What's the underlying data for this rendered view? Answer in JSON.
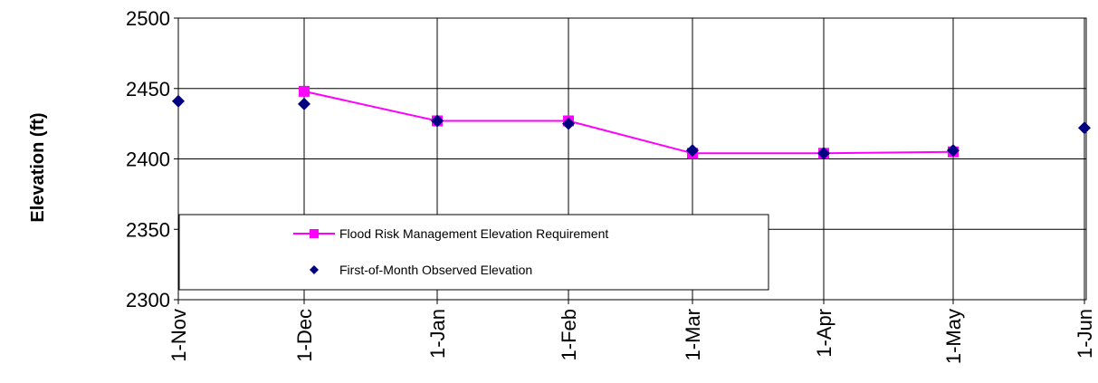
{
  "chart_data": {
    "type": "line",
    "title": "",
    "xlabel": "",
    "ylabel": "Elevation (ft)",
    "ylim": [
      2300,
      2500
    ],
    "yticks": [
      2300,
      2350,
      2400,
      2450,
      2500
    ],
    "categories": [
      "1-Nov",
      "1-Dec",
      "1-Jan",
      "1-Feb",
      "1-Mar",
      "1-Apr",
      "1-May",
      "1-Jun"
    ],
    "grid": true,
    "legend_position": "lower-left",
    "series": [
      {
        "name": "Flood Risk Management Elevation Requirement",
        "kind": "line-square",
        "color": "#ff00ff",
        "points": [
          {
            "x": "1-Dec",
            "y": 2448
          },
          {
            "x": "1-Jan",
            "y": 2427
          },
          {
            "x": "1-Feb",
            "y": 2427
          },
          {
            "x": "1-Mar",
            "y": 2404
          },
          {
            "x": "1-Apr",
            "y": 2404
          },
          {
            "x": "1-May",
            "y": 2405
          }
        ]
      },
      {
        "name": "First-of-Month Observed Elevation",
        "kind": "scatter-diamond",
        "color": "#000080",
        "points": [
          {
            "x": "1-Nov",
            "y": 2441
          },
          {
            "x": "1-Dec",
            "y": 2439
          },
          {
            "x": "1-Jan",
            "y": 2427
          },
          {
            "x": "1-Feb",
            "y": 2425
          },
          {
            "x": "1-Mar",
            "y": 2406
          },
          {
            "x": "1-Apr",
            "y": 2404
          },
          {
            "x": "1-May",
            "y": 2406
          },
          {
            "x": "1-Jun",
            "y": 2422
          }
        ]
      }
    ]
  }
}
